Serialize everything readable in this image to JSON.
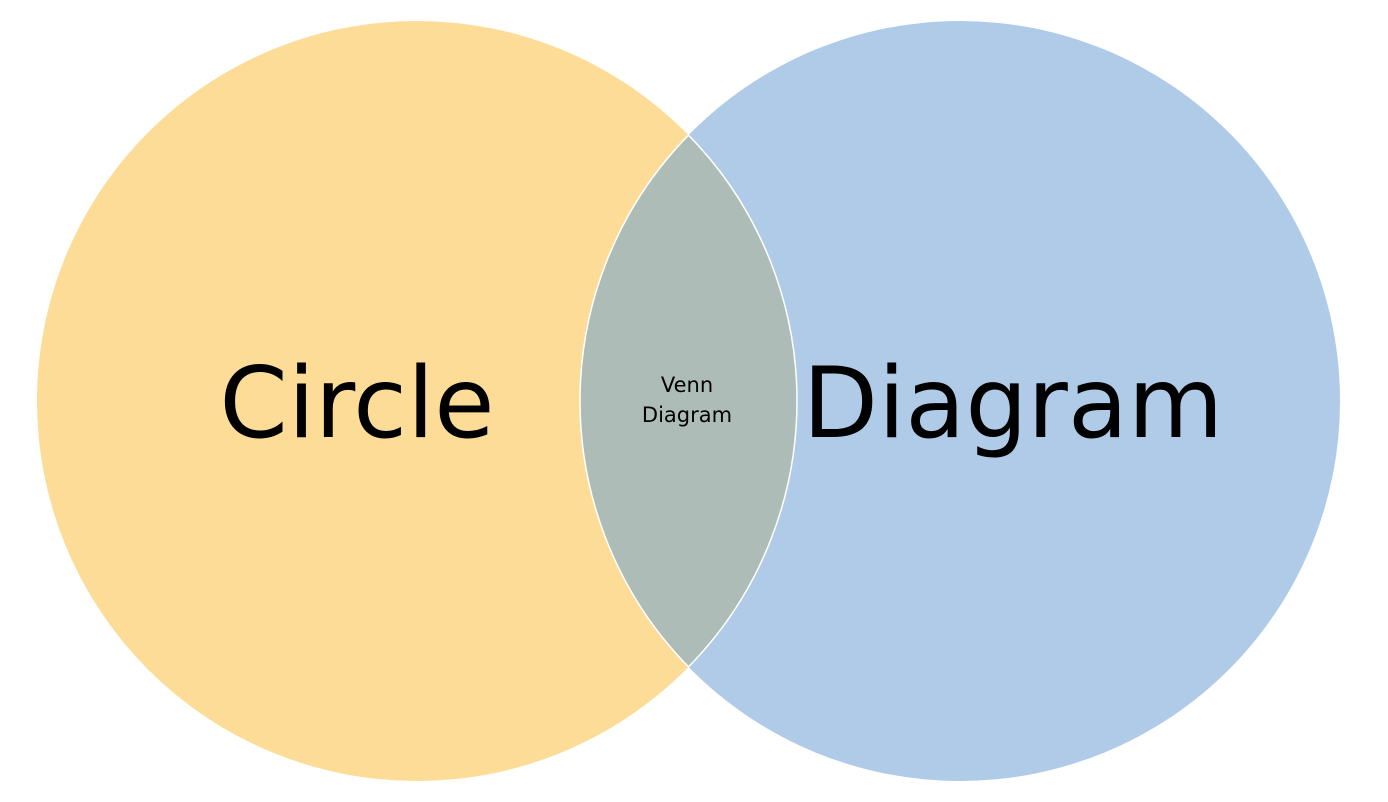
{
  "diagram": {
    "type": "venn",
    "sets": [
      {
        "label": "Circle",
        "color": "#fcdc97"
      },
      {
        "label": "Diagram",
        "color": "#afcbe8"
      }
    ],
    "intersection": {
      "label_line1": "Venn",
      "label_line2": "Diagram",
      "color": "#adbcb6"
    },
    "outline_color": "#ffffff"
  }
}
